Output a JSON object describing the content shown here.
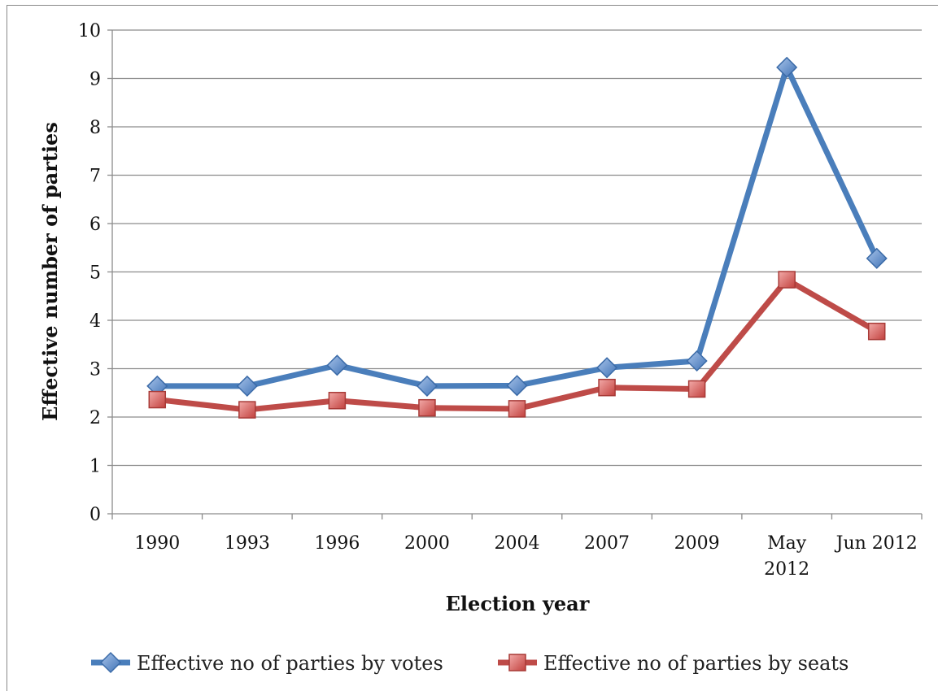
{
  "chart_data": {
    "type": "line",
    "categories": [
      "1990",
      "1993",
      "1996",
      "2000",
      "2004",
      "2007",
      "2009",
      "May 2012",
      "Jun 2012"
    ],
    "category_lines": [
      [
        "1990"
      ],
      [
        "1993"
      ],
      [
        "1996"
      ],
      [
        "2000"
      ],
      [
        "2004"
      ],
      [
        "2007"
      ],
      [
        "2009"
      ],
      [
        "May",
        "2012"
      ],
      [
        "Jun 2012"
      ]
    ],
    "series": [
      {
        "name": "Effective no of parties by votes",
        "color": "#4a7ebb",
        "marker": "diamond",
        "values": [
          2.64,
          2.64,
          3.07,
          2.64,
          2.65,
          3.02,
          3.16,
          9.23,
          5.28
        ]
      },
      {
        "name": "Effective no of parties by seats",
        "color": "#be4b48",
        "marker": "square",
        "values": [
          2.36,
          2.15,
          2.34,
          2.19,
          2.17,
          2.61,
          2.58,
          4.84,
          3.77
        ]
      }
    ],
    "xlabel": "Election year",
    "ylabel": "Effective number of parties",
    "ylim": [
      0,
      10
    ],
    "yticks": [
      "0",
      "1",
      "2",
      "3",
      "4",
      "5",
      "6",
      "7",
      "8",
      "9",
      "10"
    ],
    "grid": "horizontal",
    "legend_position": "bottom"
  }
}
